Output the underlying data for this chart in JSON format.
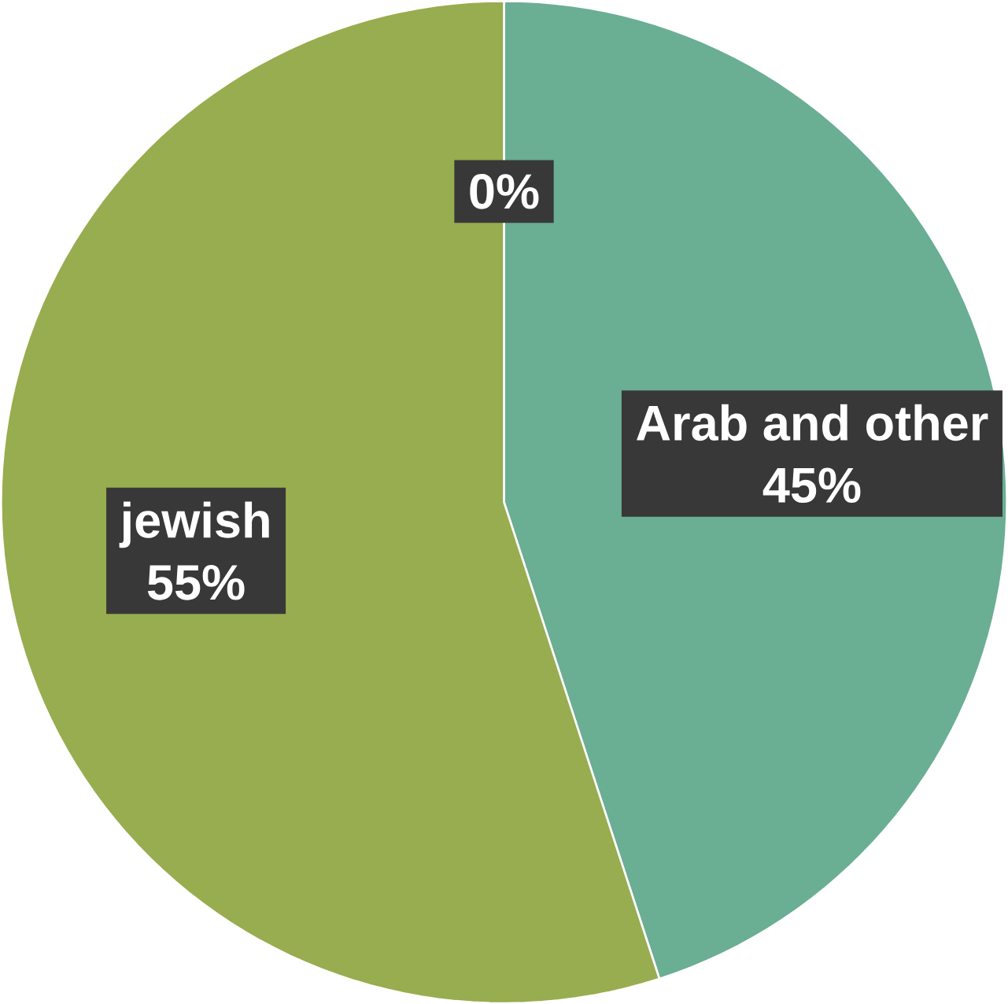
{
  "chart_data": {
    "type": "pie",
    "categories": [
      null,
      "Arab and other",
      "jewish"
    ],
    "values": [
      0,
      45,
      55
    ],
    "value_labels": [
      "0%",
      "45%",
      "55%"
    ],
    "colors": [
      "#4f81bd",
      "#6aae94",
      "#97ad4f"
    ]
  }
}
